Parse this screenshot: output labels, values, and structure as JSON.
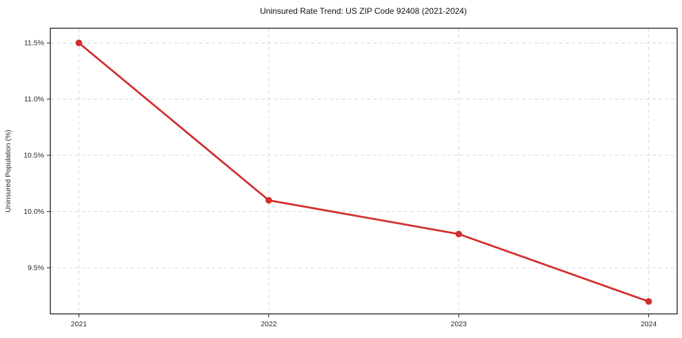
{
  "chart_data": {
    "type": "line",
    "title": "Uninsured Rate Trend: US ZIP Code 92408 (2021-2024)",
    "xlabel": "",
    "ylabel": "Uninsured Population (%)",
    "categories": [
      "2021",
      "2022",
      "2023",
      "2024"
    ],
    "series": [
      {
        "name": "uninsured-rate",
        "values": [
          11.5,
          10.1,
          9.8,
          9.2
        ]
      }
    ],
    "yticks": [
      9.5,
      10.0,
      10.5,
      11.0,
      11.5
    ],
    "ytick_labels": [
      "9.5%",
      "10.0%",
      "10.5%",
      "11.0%",
      "11.5%"
    ],
    "ylim": [
      9.09,
      11.63
    ],
    "grid": true,
    "grid_style": "dashed",
    "legend": false
  },
  "styles": {
    "line_color": "#d32f2f",
    "marker_color": "#d32f2f",
    "grid_color": "#d6d6d6",
    "spine_color": "#1a1a1a",
    "tick_color": "#1a1a1a",
    "text_color": "#262626",
    "background": "#ffffff"
  }
}
